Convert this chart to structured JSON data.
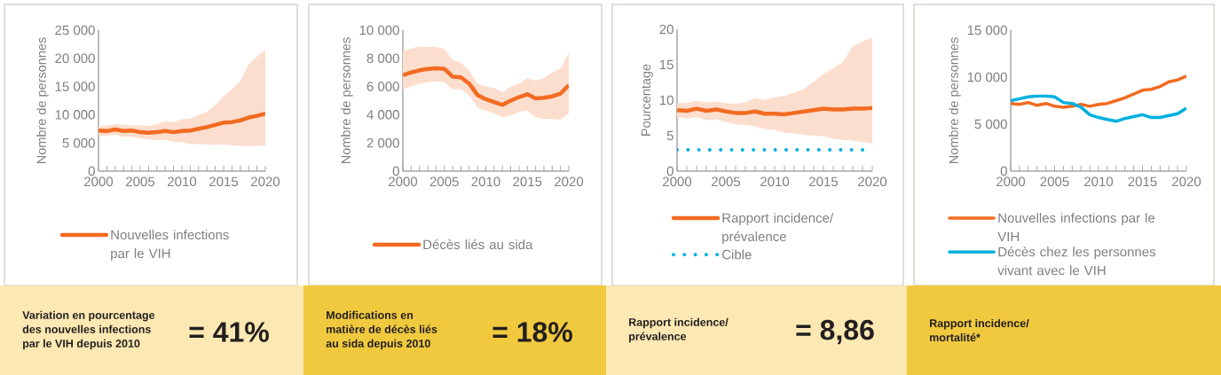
{
  "chart_data": [
    {
      "type": "line",
      "x": [
        2000,
        2001,
        2002,
        2003,
        2004,
        2005,
        2006,
        2007,
        2008,
        2009,
        2010,
        2011,
        2012,
        2013,
        2014,
        2015,
        2016,
        2017,
        2018,
        2019,
        2020
      ],
      "ylabel": "Nombre de personnes",
      "xlim": [
        2000,
        2020
      ],
      "xticks": [
        2000,
        2005,
        2010,
        2015,
        2020
      ],
      "ylim": [
        0,
        25000
      ],
      "yticks": [
        0,
        {
          "value": 5000,
          "label": "5 000"
        },
        {
          "value": 10000,
          "label": "10 000"
        },
        {
          "value": 15000,
          "label": "15 000"
        },
        {
          "value": 20000,
          "label": "20 000"
        },
        {
          "value": 25000,
          "label": "25 000"
        }
      ],
      "legend": "bottom",
      "series": [
        {
          "name": "Nouvelles infections par le VIH",
          "color": "#f26b21",
          "values": [
            7200,
            7100,
            7400,
            7100,
            7200,
            6900,
            6800,
            6900,
            7100,
            6900,
            7100,
            7200,
            7500,
            7800,
            8200,
            8600,
            8700,
            9000,
            9500,
            9800,
            10200
          ],
          "lower": [
            6300,
            6200,
            6500,
            6100,
            6100,
            5800,
            5600,
            5500,
            5500,
            5200,
            5100,
            4800,
            4800,
            4700,
            4650,
            4700,
            4600,
            4500,
            4450,
            4500,
            4500
          ],
          "upper": [
            8000,
            8100,
            8300,
            8250,
            8100,
            8100,
            8000,
            8300,
            8900,
            8700,
            9200,
            9300,
            9900,
            10500,
            11700,
            13300,
            14500,
            16000,
            19000,
            20300,
            21500
          ]
        }
      ]
    },
    {
      "type": "line",
      "x": [
        2000,
        2001,
        2002,
        2003,
        2004,
        2005,
        2006,
        2007,
        2008,
        2009,
        2010,
        2011,
        2012,
        2013,
        2014,
        2015,
        2016,
        2017,
        2018,
        2019,
        2020
      ],
      "ylabel": "Nombre de personnes",
      "xlim": [
        2000,
        2020
      ],
      "xticks": [
        2000,
        2005,
        2010,
        2015,
        2020
      ],
      "ylim": [
        0,
        10000
      ],
      "yticks": [
        0,
        {
          "value": 2000,
          "label": "2 000"
        },
        {
          "value": 4000,
          "label": "4 000"
        },
        {
          "value": 6000,
          "label": "6 000"
        },
        {
          "value": 8000,
          "label": "8 000"
        },
        {
          "value": 10000,
          "label": "10 000"
        }
      ],
      "legend": "bottom",
      "series": [
        {
          "name": "Décès liés au sida",
          "color": "#f26b21",
          "values": [
            6800,
            7000,
            7150,
            7250,
            7300,
            7250,
            6700,
            6650,
            6200,
            5400,
            5100,
            4900,
            4700,
            5000,
            5250,
            5450,
            5150,
            5200,
            5300,
            5500,
            6100
          ],
          "lower": [
            5800,
            6000,
            6200,
            6300,
            6350,
            6300,
            5800,
            5800,
            5400,
            4500,
            4300,
            4100,
            3800,
            3950,
            4200,
            4300,
            3800,
            3700,
            3700,
            3650,
            4100
          ],
          "upper": [
            8500,
            8700,
            8850,
            8800,
            8800,
            8650,
            7900,
            7700,
            7100,
            6200,
            6000,
            5900,
            5600,
            6000,
            6200,
            6600,
            6400,
            6600,
            7000,
            7300,
            8400
          ]
        }
      ]
    },
    {
      "type": "line",
      "x": [
        2000,
        2001,
        2002,
        2003,
        2004,
        2005,
        2006,
        2007,
        2008,
        2009,
        2010,
        2011,
        2012,
        2013,
        2014,
        2015,
        2016,
        2017,
        2018,
        2019,
        2020
      ],
      "ylabel": "Pourcentage",
      "xlim": [
        2000,
        2020
      ],
      "xticks": [
        2000,
        2005,
        2010,
        2015,
        2020
      ],
      "ylim": [
        0,
        20
      ],
      "yticks": [
        0,
        5,
        10,
        15,
        20
      ],
      "legend": "bottom",
      "series": [
        {
          "name": "Rapport incidence/ prévalence",
          "color": "#f26b21",
          "values": [
            8.6,
            8.5,
            8.8,
            8.5,
            8.7,
            8.4,
            8.2,
            8.2,
            8.4,
            8.1,
            8.1,
            8.0,
            8.2,
            8.4,
            8.6,
            8.8,
            8.7,
            8.7,
            8.8,
            8.8,
            8.9
          ],
          "lower": [
            7.6,
            7.4,
            7.6,
            7.2,
            7.3,
            6.9,
            6.6,
            6.5,
            6.3,
            5.9,
            5.8,
            5.4,
            5.3,
            5.1,
            5.0,
            4.9,
            4.6,
            4.4,
            4.3,
            4.1,
            3.9
          ],
          "upper": [
            9.6,
            9.6,
            9.9,
            9.7,
            9.8,
            9.6,
            9.5,
            9.7,
            10.3,
            10.0,
            10.4,
            10.6,
            11.1,
            11.6,
            12.6,
            13.7,
            14.5,
            15.4,
            17.6,
            18.3,
            18.8
          ]
        },
        {
          "name": "Cible",
          "color": "#00b0e0",
          "x": [
            2000,
            2019
          ],
          "values": [
            3,
            3
          ],
          "line_style": "dotted"
        }
      ]
    },
    {
      "type": "line",
      "x": [
        2000,
        2001,
        2002,
        2003,
        2004,
        2005,
        2006,
        2007,
        2008,
        2009,
        2010,
        2011,
        2012,
        2013,
        2014,
        2015,
        2016,
        2017,
        2018,
        2019,
        2020
      ],
      "ylabel": "Nombre de personnes",
      "xlim": [
        2000,
        2020
      ],
      "xticks": [
        2000,
        2005,
        2010,
        2015,
        2020
      ],
      "ylim": [
        0,
        15000
      ],
      "yticks": [
        0,
        {
          "value": 5000,
          "label": "5 000"
        },
        {
          "value": 10000,
          "label": "10 000"
        },
        {
          "value": 15000,
          "label": "15 000"
        }
      ],
      "legend": "bottom",
      "series": [
        {
          "name": "Nouvelles infections par le VIH",
          "color": "#f26b21",
          "values": [
            7200,
            7100,
            7300,
            7000,
            7200,
            6900,
            6800,
            6900,
            7100,
            6900,
            7100,
            7200,
            7500,
            7800,
            8200,
            8600,
            8700,
            9000,
            9500,
            9700,
            10100
          ]
        },
        {
          "name": "Décès chez les personnes vivant avec le VIH",
          "color": "#00b0e0",
          "values": [
            7500,
            7700,
            7900,
            8000,
            8000,
            7900,
            7300,
            7200,
            6800,
            6000,
            5700,
            5500,
            5300,
            5600,
            5800,
            6000,
            5700,
            5700,
            5900,
            6100,
            6700
          ]
        }
      ]
    },
    {
      "type": "other",
      "title": "Variation en pourcentage des nouvelles infections par le VIH depuis 2010",
      "annotations": [
        "= 41%"
      ],
      "color": "#fce8b2"
    },
    {
      "type": "other",
      "title": "Modifications en matière de décès liés au sida depuis 2010",
      "annotations": [
        "= 18%"
      ],
      "color": "#f0c93f"
    },
    {
      "type": "other",
      "title": "Rapport incidence/ prévalence",
      "annotations": [
        "= 8,86"
      ],
      "color": "#fce8b2"
    },
    {
      "type": "other",
      "title": "Rapport incidence/ mortalité*",
      "color": "#f0c93f"
    }
  ]
}
